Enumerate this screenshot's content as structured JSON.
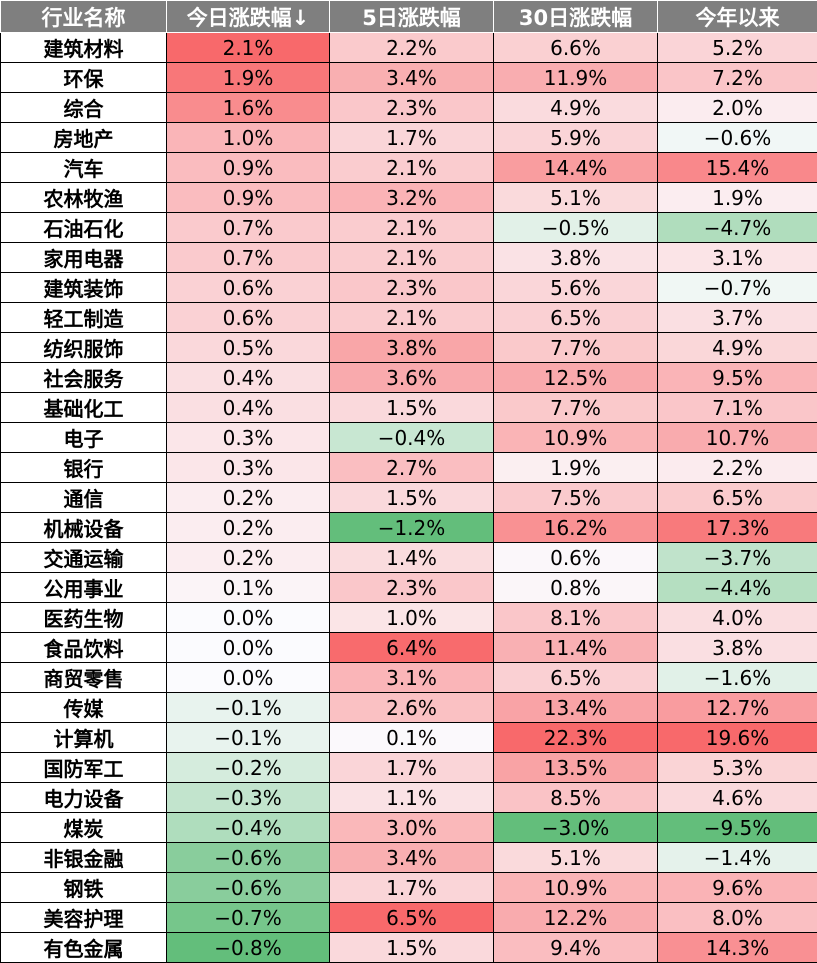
{
  "headers": [
    "行业名称",
    "今日涨跌幅↓",
    "5日涨跌幅",
    "30日涨跌幅",
    "今年以来"
  ],
  "rows": [
    {
      "name": "建筑材料",
      "v": [
        "2.1%",
        "2.2%",
        "6.6%",
        "5.2%"
      ]
    },
    {
      "name": "环保",
      "v": [
        "1.9%",
        "3.4%",
        "11.9%",
        "7.2%"
      ]
    },
    {
      "name": "综合",
      "v": [
        "1.6%",
        "2.3%",
        "4.9%",
        "2.0%"
      ]
    },
    {
      "name": "房地产",
      "v": [
        "1.0%",
        "1.7%",
        "5.9%",
        "−0.6%"
      ]
    },
    {
      "name": "汽车",
      "v": [
        "0.9%",
        "2.1%",
        "14.4%",
        "15.4%"
      ]
    },
    {
      "name": "农林牧渔",
      "v": [
        "0.9%",
        "3.2%",
        "5.1%",
        "1.9%"
      ]
    },
    {
      "name": "石油石化",
      "v": [
        "0.7%",
        "2.1%",
        "−0.5%",
        "−4.7%"
      ]
    },
    {
      "name": "家用电器",
      "v": [
        "0.7%",
        "2.1%",
        "3.8%",
        "3.1%"
      ]
    },
    {
      "name": "建筑装饰",
      "v": [
        "0.6%",
        "2.3%",
        "5.6%",
        "−0.7%"
      ]
    },
    {
      "name": "轻工制造",
      "v": [
        "0.6%",
        "2.1%",
        "6.5%",
        "3.7%"
      ]
    },
    {
      "name": "纺织服饰",
      "v": [
        "0.5%",
        "3.8%",
        "7.7%",
        "4.9%"
      ]
    },
    {
      "name": "社会服务",
      "v": [
        "0.4%",
        "3.6%",
        "12.5%",
        "9.5%"
      ]
    },
    {
      "name": "基础化工",
      "v": [
        "0.4%",
        "1.5%",
        "7.7%",
        "7.1%"
      ]
    },
    {
      "name": "电子",
      "v": [
        "0.3%",
        "−0.4%",
        "10.9%",
        "10.7%"
      ]
    },
    {
      "name": "银行",
      "v": [
        "0.3%",
        "2.7%",
        "1.9%",
        "2.2%"
      ]
    },
    {
      "name": "通信",
      "v": [
        "0.2%",
        "1.5%",
        "7.5%",
        "6.5%"
      ]
    },
    {
      "name": "机械设备",
      "v": [
        "0.2%",
        "−1.2%",
        "16.2%",
        "17.3%"
      ]
    },
    {
      "name": "交通运输",
      "v": [
        "0.2%",
        "1.4%",
        "0.6%",
        "−3.7%"
      ]
    },
    {
      "name": "公用事业",
      "v": [
        "0.1%",
        "2.3%",
        "0.8%",
        "−4.4%"
      ]
    },
    {
      "name": "医药生物",
      "v": [
        "0.0%",
        "1.0%",
        "8.1%",
        "4.0%"
      ]
    },
    {
      "name": "食品饮料",
      "v": [
        "0.0%",
        "6.4%",
        "11.4%",
        "3.8%"
      ]
    },
    {
      "name": "商贸零售",
      "v": [
        "0.0%",
        "3.1%",
        "6.5%",
        "−1.6%"
      ]
    },
    {
      "name": "传媒",
      "v": [
        "−0.1%",
        "2.6%",
        "13.4%",
        "12.7%"
      ]
    },
    {
      "name": "计算机",
      "v": [
        "−0.1%",
        "0.1%",
        "22.3%",
        "19.6%"
      ]
    },
    {
      "name": "国防军工",
      "v": [
        "−0.2%",
        "1.7%",
        "13.5%",
        "5.3%"
      ]
    },
    {
      "name": "电力设备",
      "v": [
        "−0.3%",
        "1.1%",
        "8.5%",
        "4.6%"
      ]
    },
    {
      "name": "煤炭",
      "v": [
        "−0.4%",
        "3.0%",
        "−3.0%",
        "−9.5%"
      ]
    },
    {
      "name": "非银金融",
      "v": [
        "−0.6%",
        "3.4%",
        "5.1%",
        "−1.4%"
      ]
    },
    {
      "name": "钢铁",
      "v": [
        "−0.6%",
        "1.7%",
        "10.9%",
        "9.6%"
      ]
    },
    {
      "name": "美容护理",
      "v": [
        "−0.7%",
        "6.5%",
        "12.2%",
        "8.0%"
      ]
    },
    {
      "name": "有色金属",
      "v": [
        "−0.8%",
        "1.5%",
        "9.4%",
        "14.3%"
      ]
    }
  ],
  "colors": {
    "header_bg": "#7f7f7f",
    "neutral": "#fbfbfe",
    "positive_max": "#f8696b",
    "negative_max": "#63be7b"
  }
}
